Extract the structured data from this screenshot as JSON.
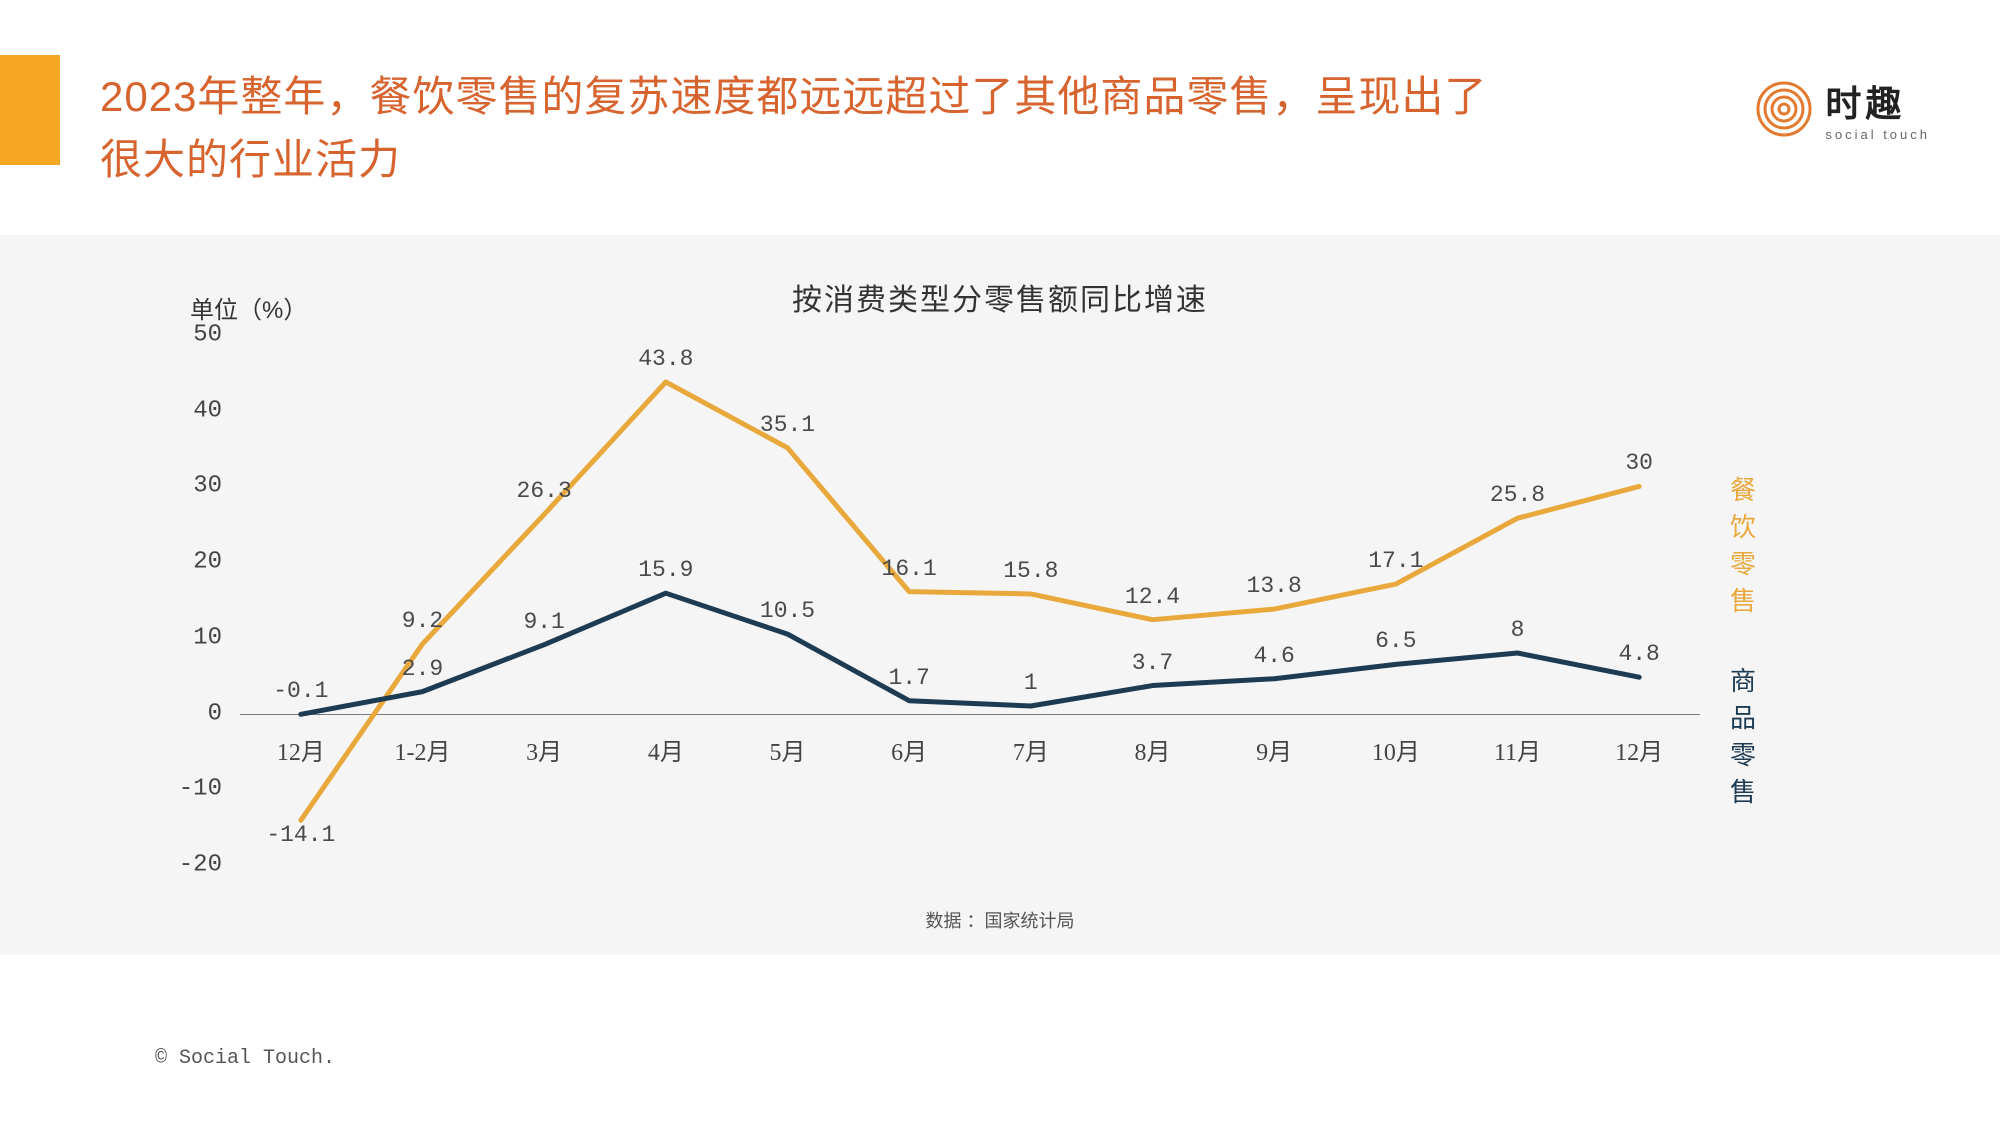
{
  "accent_color": "#f5a623",
  "title": "2023年整年，餐饮零售的复苏速度都远远超过了其他商品零售，呈现出了很大的行业活力",
  "title_color": "#d7632e",
  "logo": {
    "cn": "时趣",
    "en": "social touch"
  },
  "chart": {
    "type": "line",
    "title": "按消费类型分零售额同比增速",
    "unit_label": "单位（%）",
    "background": "#f5f5f5",
    "ylim": [
      -20,
      50
    ],
    "ytick_step": 10,
    "yticks": [
      -20,
      -10,
      0,
      10,
      20,
      30,
      40,
      50
    ],
    "categories": [
      "12月",
      "1-2月",
      "3月",
      "4月",
      "5月",
      "6月",
      "7月",
      "8月",
      "9月",
      "10月",
      "11月",
      "12月"
    ],
    "axis_color": "#7a7a7a",
    "series": [
      {
        "name": "餐饮零售",
        "color": "#e9a83c",
        "line_width": 5,
        "label_color": "#4a4a4a",
        "values": [
          -14.1,
          9.2,
          26.3,
          43.8,
          35.1,
          16.1,
          15.8,
          12.4,
          13.8,
          17.1,
          25.8,
          30
        ],
        "labels": [
          "-14.1",
          "9.2",
          "26.3",
          "43.8",
          "35.1",
          "16.1",
          "15.8",
          "12.4",
          "13.8",
          "17.1",
          "25.8",
          "30"
        ]
      },
      {
        "name": "商品零售",
        "color": "#1d3b53",
        "line_width": 5,
        "label_color": "#4a4a4a",
        "values": [
          -0.1,
          2.9,
          9.1,
          15.9,
          10.5,
          1.7,
          1,
          3.7,
          4.6,
          6.5,
          8,
          4.8
        ],
        "labels": [
          "-0.1",
          "2.9",
          "9.1",
          "15.9",
          "10.5",
          "1.7",
          "1",
          "3.7",
          "4.6",
          "6.5",
          "8",
          "4.8"
        ]
      }
    ],
    "source_note": "数据      ：国家统计局"
  },
  "copyright": "© Social Touch."
}
